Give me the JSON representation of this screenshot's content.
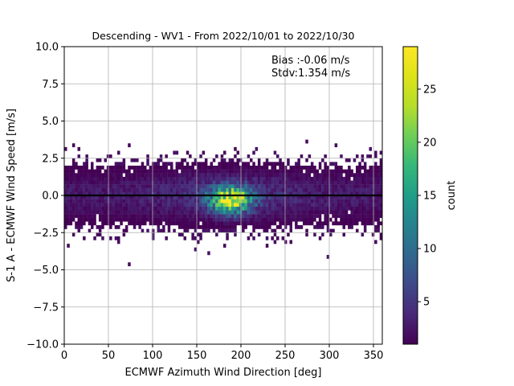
{
  "chart_data": {
    "type": "heatmap",
    "title": "Descending - WV1 - From 2022/10/01 to 2022/10/30",
    "xlabel": "ECMWF Azimuth Wind Direction [deg]",
    "ylabel": "S-1 A - ECMWF Wind Speed [m/s]",
    "xlim": [
      0,
      360
    ],
    "ylim": [
      -10,
      10
    ],
    "xticks": [
      0,
      50,
      100,
      150,
      200,
      250,
      300,
      350
    ],
    "xtick_labels": [
      "0",
      "50",
      "100",
      "150",
      "200",
      "250",
      "300",
      "350"
    ],
    "yticks": [
      -10,
      -7.5,
      -5,
      -2.5,
      0,
      2.5,
      5,
      7.5,
      10
    ],
    "ytick_labels": [
      "−10.0",
      "−7.5",
      "−5.0",
      "−2.5",
      "0.0",
      "2.5",
      "5.0",
      "7.5",
      "10.0"
    ],
    "grid": true,
    "colormap": "viridis",
    "colorbar": {
      "label": "count",
      "range": [
        1,
        29
      ],
      "ticks": [
        5,
        10,
        15,
        20,
        25
      ],
      "tick_labels": [
        "5",
        "10",
        "15",
        "20",
        "25"
      ]
    },
    "annotations": [
      "Bias :-0.06 m/s",
      "Stdv:1.354 m/s"
    ],
    "reference_line_y": 0,
    "density_peak": {
      "x": 188,
      "y": -0.3,
      "count": 29
    }
  }
}
